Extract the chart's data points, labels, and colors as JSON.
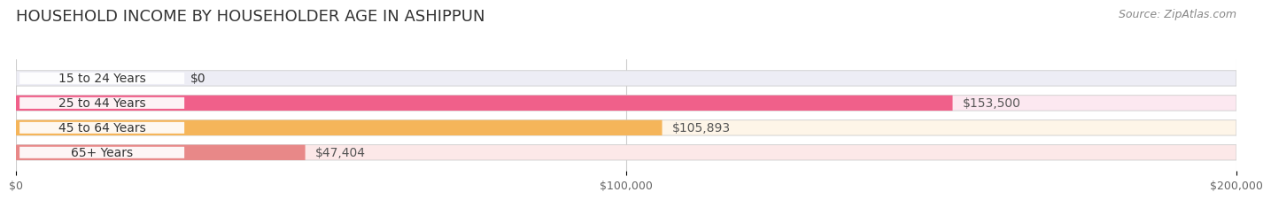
{
  "title": "HOUSEHOLD INCOME BY HOUSEHOLDER AGE IN ASHIPPUN",
  "source": "Source: ZipAtlas.com",
  "categories": [
    "15 to 24 Years",
    "25 to 44 Years",
    "45 to 64 Years",
    "65+ Years"
  ],
  "values": [
    0,
    153500,
    105893,
    47404
  ],
  "value_labels": [
    "$0",
    "$153,500",
    "$105,893",
    "$47,404"
  ],
  "bar_colors": [
    "#aaaadd",
    "#f0608a",
    "#f5b55a",
    "#e88888"
  ],
  "bar_bg_colors": [
    "#ededf5",
    "#fce8f0",
    "#fef5e8",
    "#fce8e8"
  ],
  "label_bg_colors": [
    "#e8e8f5",
    "#fce8f0",
    "#fef5e8",
    "#fce8e8"
  ],
  "xlim": [
    0,
    200000
  ],
  "xticks": [
    0,
    100000,
    200000
  ],
  "xtick_labels": [
    "$0",
    "$100,000",
    "$200,000"
  ],
  "title_fontsize": 13,
  "label_fontsize": 10,
  "tick_fontsize": 9,
  "source_fontsize": 9,
  "background_color": "#ffffff",
  "bar_height": 0.62,
  "grid_color": "#cccccc",
  "text_color": "#333333",
  "value_label_color_inside": "#ffffff",
  "value_label_color_outside": "#555555"
}
